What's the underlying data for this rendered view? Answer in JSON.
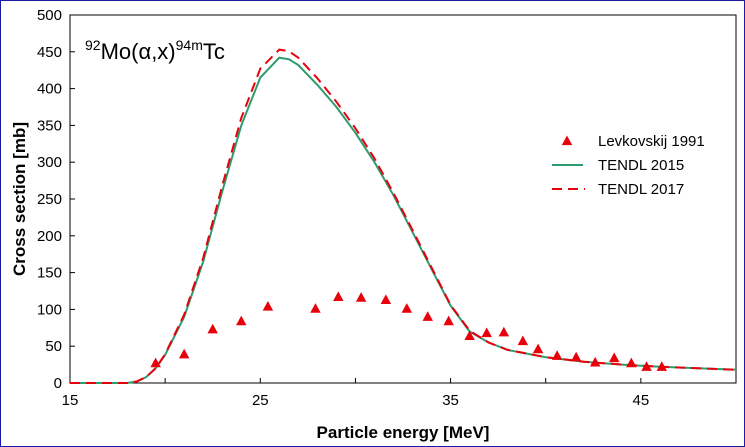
{
  "chart_data": {
    "type": "scatter",
    "title_parts": {
      "a_mass": "92",
      "target": "Mo(",
      "alpha": "α",
      "rest": ",x)",
      "b_mass": "94m",
      "product": "Tc"
    },
    "xlabel": "Particle  energy [MeV]",
    "ylabel": "Cross section [mb]",
    "xlim": [
      15,
      50
    ],
    "ylim": [
      0,
      500
    ],
    "x_ticks": [
      15,
      25,
      35,
      45
    ],
    "y_ticks": [
      0,
      50,
      100,
      150,
      200,
      250,
      300,
      350,
      400,
      450,
      500
    ],
    "grid": false,
    "legend_position": "right",
    "colors": {
      "experiment": "#e8000b",
      "tendl2015": "#2e9b6e",
      "tendl2017": "#e8000b",
      "plot_border": "#000000",
      "frame": "#1a1aa6"
    },
    "series": [
      {
        "name": "Levkovskij 1991",
        "kind": "marker",
        "x": [
          19.5,
          21.0,
          22.5,
          24.0,
          25.4,
          27.9,
          29.1,
          30.3,
          31.6,
          32.7,
          33.8,
          34.9,
          36.0,
          36.9,
          37.8,
          38.8,
          39.6,
          40.6,
          41.6,
          42.6,
          43.6,
          44.5,
          45.3,
          46.1
        ],
        "y": [
          27,
          39,
          73,
          84,
          104,
          101,
          117,
          116,
          113,
          101,
          90,
          84,
          64,
          68,
          69,
          57,
          46,
          37,
          35,
          28,
          34,
          27,
          22,
          22
        ]
      },
      {
        "name": "TENDL 2015",
        "kind": "line",
        "x": [
          15,
          18,
          18.5,
          19,
          19.5,
          20,
          21,
          22,
          23,
          24,
          25,
          26,
          26.5,
          27,
          28,
          29,
          30,
          31,
          32,
          33,
          34,
          35,
          36,
          37,
          38,
          40,
          42,
          44,
          46,
          48,
          50
        ],
        "y": [
          0,
          0,
          2,
          8,
          20,
          38,
          90,
          165,
          260,
          350,
          415,
          442,
          440,
          432,
          405,
          375,
          340,
          300,
          255,
          205,
          155,
          105,
          70,
          55,
          45,
          35,
          29,
          25,
          22,
          20,
          18
        ]
      },
      {
        "name": "TENDL 2017",
        "kind": "line",
        "x": [
          15,
          18,
          18.5,
          19,
          19.5,
          20,
          21,
          22,
          23,
          24,
          25,
          26,
          26.5,
          27,
          28,
          29,
          30,
          31,
          32,
          33,
          34,
          35,
          36,
          37,
          38,
          40,
          42,
          44,
          46,
          48,
          50
        ],
        "y": [
          0,
          0,
          2,
          8,
          20,
          39,
          93,
          170,
          268,
          360,
          427,
          453,
          451,
          442,
          414,
          382,
          346,
          305,
          258,
          208,
          157,
          106,
          71,
          55,
          45,
          35,
          29,
          25,
          22,
          20,
          18
        ]
      }
    ]
  }
}
